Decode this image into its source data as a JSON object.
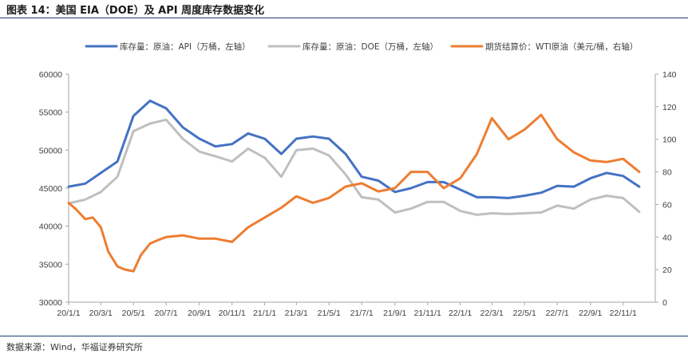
{
  "header": {
    "title": "图表 14：美国 EIA（DOE）及 API 周度库存数据变化"
  },
  "footer": {
    "source": "数据来源：Wind，华福证券研究所"
  },
  "colors": {
    "api": "#4472c4",
    "doe": "#bfbfbf",
    "wti": "#ed7d31",
    "rule": "#1f3b73"
  },
  "chart_data": {
    "type": "line",
    "grid": false,
    "legend_position": "top",
    "x_tick_labels": [
      "20/1/1",
      "20/3/1",
      "20/5/1",
      "20/7/1",
      "20/9/1",
      "20/11/1",
      "21/1/1",
      "21/3/1",
      "21/5/1",
      "21/7/1",
      "21/9/1",
      "21/11/1",
      "22/1/1",
      "22/3/1",
      "22/5/1",
      "22/7/1",
      "22/9/1",
      "22/11/1"
    ],
    "x_range": [
      "2020-01-01",
      "2022-12-31"
    ],
    "y_left": {
      "min": 30000,
      "max": 60000,
      "ticks": [
        "30000",
        "35000",
        "40000",
        "45000",
        "50000",
        "55000",
        "60000"
      ]
    },
    "y_right": {
      "min": 0,
      "max": 140,
      "ticks": [
        "0",
        "20",
        "40",
        "60",
        "80",
        "100",
        "120",
        "140"
      ]
    },
    "series": [
      {
        "name": "库存量：原油：API（万桶，左轴）",
        "axis": "left",
        "color_key": "api",
        "points": [
          [
            "2020-01-01",
            45200
          ],
          [
            "2020-02-01",
            45600
          ],
          [
            "2020-03-01",
            47000
          ],
          [
            "2020-04-01",
            48500
          ],
          [
            "2020-05-01",
            54500
          ],
          [
            "2020-06-01",
            56500
          ],
          [
            "2020-07-01",
            55500
          ],
          [
            "2020-08-01",
            53000
          ],
          [
            "2020-09-01",
            51500
          ],
          [
            "2020-10-01",
            50500
          ],
          [
            "2020-11-01",
            50800
          ],
          [
            "2020-12-01",
            52200
          ],
          [
            "2021-01-01",
            51500
          ],
          [
            "2021-02-01",
            49500
          ],
          [
            "2021-03-01",
            51500
          ],
          [
            "2021-04-01",
            51800
          ],
          [
            "2021-05-01",
            51500
          ],
          [
            "2021-06-01",
            49500
          ],
          [
            "2021-07-01",
            46500
          ],
          [
            "2021-08-01",
            46000
          ],
          [
            "2021-09-01",
            44500
          ],
          [
            "2021-10-01",
            45000
          ],
          [
            "2021-11-01",
            45800
          ],
          [
            "2021-12-01",
            45800
          ],
          [
            "2022-01-01",
            44800
          ],
          [
            "2022-02-01",
            43800
          ],
          [
            "2022-03-01",
            43800
          ],
          [
            "2022-04-01",
            43700
          ],
          [
            "2022-05-01",
            44000
          ],
          [
            "2022-06-01",
            44400
          ],
          [
            "2022-07-01",
            45300
          ],
          [
            "2022-08-01",
            45200
          ],
          [
            "2022-09-01",
            46300
          ],
          [
            "2022-10-01",
            47000
          ],
          [
            "2022-11-01",
            46600
          ],
          [
            "2022-12-01",
            45200
          ]
        ]
      },
      {
        "name": "库存量：原油：DOE（万桶，左轴）",
        "axis": "left",
        "color_key": "doe",
        "points": [
          [
            "2020-01-01",
            43000
          ],
          [
            "2020-02-01",
            43500
          ],
          [
            "2020-03-01",
            44500
          ],
          [
            "2020-04-01",
            46500
          ],
          [
            "2020-05-01",
            52500
          ],
          [
            "2020-06-01",
            53500
          ],
          [
            "2020-07-01",
            54000
          ],
          [
            "2020-08-01",
            51500
          ],
          [
            "2020-09-01",
            49800
          ],
          [
            "2020-10-01",
            49200
          ],
          [
            "2020-11-01",
            48500
          ],
          [
            "2020-12-01",
            50200
          ],
          [
            "2021-01-01",
            49000
          ],
          [
            "2021-02-01",
            46500
          ],
          [
            "2021-03-01",
            50000
          ],
          [
            "2021-04-01",
            50200
          ],
          [
            "2021-05-01",
            49300
          ],
          [
            "2021-06-01",
            46800
          ],
          [
            "2021-07-01",
            43800
          ],
          [
            "2021-08-01",
            43500
          ],
          [
            "2021-09-01",
            41800
          ],
          [
            "2021-10-01",
            42300
          ],
          [
            "2021-11-01",
            43200
          ],
          [
            "2021-12-01",
            43200
          ],
          [
            "2022-01-01",
            42000
          ],
          [
            "2022-02-01",
            41500
          ],
          [
            "2022-03-01",
            41700
          ],
          [
            "2022-04-01",
            41600
          ],
          [
            "2022-05-01",
            41700
          ],
          [
            "2022-06-01",
            41800
          ],
          [
            "2022-07-01",
            42700
          ],
          [
            "2022-08-01",
            42300
          ],
          [
            "2022-09-01",
            43500
          ],
          [
            "2022-10-01",
            44000
          ],
          [
            "2022-11-01",
            43700
          ],
          [
            "2022-12-01",
            41900
          ]
        ]
      },
      {
        "name": "期货结算价：WTI原油（美元/桶，右轴）",
        "axis": "right",
        "color_key": "wti",
        "points": [
          [
            "2020-01-01",
            61
          ],
          [
            "2020-01-15",
            57
          ],
          [
            "2020-02-01",
            51
          ],
          [
            "2020-02-15",
            52
          ],
          [
            "2020-03-01",
            46
          ],
          [
            "2020-03-15",
            31
          ],
          [
            "2020-04-01",
            22
          ],
          [
            "2020-04-15",
            20
          ],
          [
            "2020-05-01",
            19
          ],
          [
            "2020-05-15",
            29
          ],
          [
            "2020-06-01",
            36
          ],
          [
            "2020-06-15",
            38
          ],
          [
            "2020-07-01",
            40
          ],
          [
            "2020-08-01",
            41
          ],
          [
            "2020-09-01",
            39
          ],
          [
            "2020-10-01",
            39
          ],
          [
            "2020-11-01",
            37
          ],
          [
            "2020-12-01",
            46
          ],
          [
            "2021-01-01",
            52
          ],
          [
            "2021-02-01",
            58
          ],
          [
            "2021-03-01",
            65
          ],
          [
            "2021-04-01",
            61
          ],
          [
            "2021-05-01",
            64
          ],
          [
            "2021-06-01",
            71
          ],
          [
            "2021-07-01",
            73
          ],
          [
            "2021-08-01",
            68
          ],
          [
            "2021-09-01",
            70
          ],
          [
            "2021-10-01",
            80
          ],
          [
            "2021-11-01",
            80
          ],
          [
            "2021-12-01",
            70
          ],
          [
            "2022-01-01",
            76
          ],
          [
            "2022-02-01",
            91
          ],
          [
            "2022-03-01",
            113
          ],
          [
            "2022-04-01",
            100
          ],
          [
            "2022-05-01",
            106
          ],
          [
            "2022-06-01",
            115
          ],
          [
            "2022-07-01",
            100
          ],
          [
            "2022-08-01",
            92
          ],
          [
            "2022-09-01",
            87
          ],
          [
            "2022-10-01",
            86
          ],
          [
            "2022-11-01",
            88
          ],
          [
            "2022-12-01",
            80
          ]
        ]
      }
    ]
  }
}
